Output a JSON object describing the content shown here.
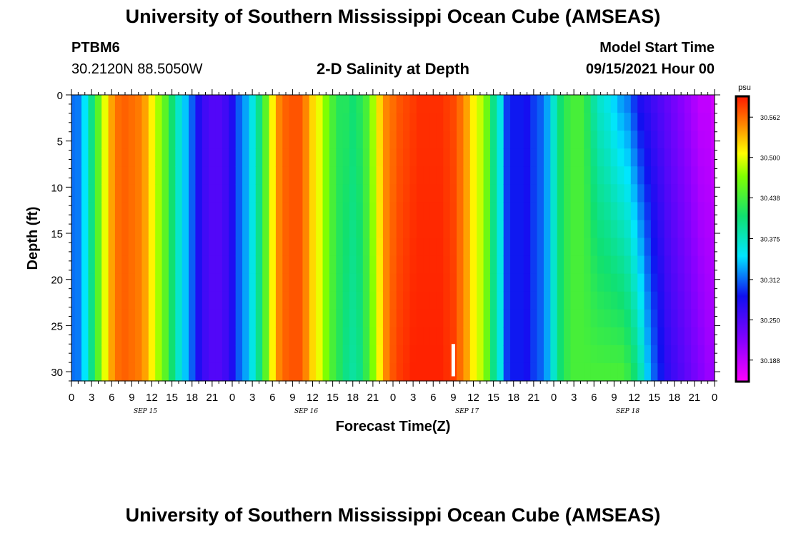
{
  "header": {
    "title": "University of Southern Mississippi Ocean Cube (AMSEAS)",
    "station": "PTBM6",
    "coords": "30.2120N  88.5050W",
    "subtitle": "2-D Salinity at Depth",
    "start_label": "Model Start Time",
    "start_time": "09/15/2021 Hour 00"
  },
  "footer": {
    "title": "University of Southern Mississippi Ocean Cube (AMSEAS)"
  },
  "colors": {
    "marker": "#ffffff",
    "border": "#000000"
  },
  "chart_data": {
    "type": "heatmap",
    "xlabel": "Forecast Time(Z)",
    "ylabel": "Depth (ft)",
    "y_ticks": [
      0,
      5,
      10,
      15,
      20,
      25,
      30
    ],
    "ylim": [
      0,
      31
    ],
    "x_ticks": [
      "0",
      "3",
      "6",
      "9",
      "12",
      "15",
      "18",
      "21",
      "0",
      "3",
      "6",
      "9",
      "12",
      "15",
      "18",
      "21",
      "0",
      "3",
      "6",
      "9",
      "12",
      "15",
      "18",
      "21",
      "0",
      "3",
      "6",
      "9",
      "12",
      "15",
      "18",
      "21",
      "0"
    ],
    "date_labels": [
      "SEP 15",
      "SEP 16",
      "SEP 17",
      "SEP 18"
    ],
    "colorbar": {
      "unit": "psu",
      "tick_labels": [
        "30.562",
        "30.500",
        "30.438",
        "30.375",
        "30.312",
        "30.250",
        "30.188"
      ],
      "min": 30.157,
      "max": 30.593
    },
    "time_hours": [
      0,
      1,
      2,
      3,
      4,
      5,
      6,
      7,
      8,
      9,
      10,
      11,
      12,
      13,
      14,
      15,
      16,
      17,
      18,
      19,
      20,
      21,
      22,
      23,
      24,
      25,
      26,
      27,
      28,
      29,
      30,
      31,
      32,
      33,
      34,
      35,
      36,
      37,
      38,
      39,
      40,
      41,
      42,
      43,
      44,
      45,
      46,
      47,
      48,
      49,
      50,
      51,
      52,
      53,
      54,
      55,
      56,
      57,
      58,
      59,
      60,
      61,
      62,
      63,
      64,
      65,
      66,
      67,
      68,
      69,
      70,
      71,
      72,
      73,
      74,
      75,
      76,
      77,
      78,
      79,
      80,
      81,
      82,
      83,
      84,
      85,
      86,
      87,
      88,
      89,
      90,
      91,
      92,
      93,
      94,
      95,
      96
    ],
    "surface_salinity": [
      30.315,
      30.318,
      30.35,
      30.4,
      30.45,
      30.5,
      30.54,
      30.56,
      30.565,
      30.56,
      30.555,
      30.54,
      30.51,
      30.48,
      30.45,
      30.41,
      30.37,
      30.34,
      30.31,
      30.28,
      30.26,
      30.25,
      30.25,
      30.26,
      30.28,
      30.31,
      30.33,
      30.36,
      30.4,
      30.45,
      30.51,
      30.55,
      30.565,
      30.57,
      30.57,
      30.55,
      30.52,
      30.5,
      30.47,
      30.44,
      30.42,
      30.42,
      30.41,
      30.42,
      30.44,
      30.48,
      30.52,
      30.55,
      30.56,
      30.57,
      30.575,
      30.58,
      30.585,
      30.585,
      30.585,
      30.585,
      30.58,
      30.575,
      30.56,
      30.54,
      30.51,
      30.49,
      30.46,
      30.4,
      30.36,
      30.3,
      30.29,
      30.29,
      30.285,
      30.3,
      30.31,
      30.33,
      30.37,
      30.41,
      30.43,
      30.44,
      30.44,
      30.42,
      30.39,
      30.37,
      30.36,
      30.345,
      30.33,
      30.32,
      30.3,
      30.28,
      30.27,
      30.26,
      30.25,
      30.24,
      30.23,
      30.22,
      30.21,
      30.2,
      30.19,
      30.19,
      30.18
    ],
    "bottom_salinity": [
      30.315,
      30.318,
      30.35,
      30.4,
      30.45,
      30.5,
      30.54,
      30.56,
      30.565,
      30.56,
      30.555,
      30.54,
      30.51,
      30.48,
      30.45,
      30.41,
      30.37,
      30.34,
      30.31,
      30.28,
      30.26,
      30.25,
      30.25,
      30.26,
      30.28,
      30.31,
      30.33,
      30.36,
      30.4,
      30.45,
      30.51,
      30.55,
      30.565,
      30.57,
      30.57,
      30.55,
      30.52,
      30.5,
      30.47,
      30.44,
      30.42,
      30.4,
      30.39,
      30.4,
      30.43,
      30.47,
      30.51,
      30.55,
      30.57,
      30.58,
      30.585,
      30.59,
      30.59,
      30.59,
      30.59,
      30.59,
      30.585,
      30.58,
      30.56,
      30.54,
      30.51,
      30.49,
      30.46,
      30.4,
      30.36,
      30.3,
      30.29,
      30.29,
      30.285,
      30.3,
      30.31,
      30.33,
      30.37,
      30.41,
      30.43,
      30.44,
      30.44,
      30.44,
      30.44,
      30.44,
      30.44,
      30.44,
      30.44,
      30.43,
      30.41,
      30.38,
      30.34,
      30.31,
      30.29,
      30.27,
      30.26,
      30.25,
      30.24,
      30.23,
      30.22,
      30.21,
      30.21
    ],
    "current_time_marker_hour": 57,
    "current_time_marker_depth_range": [
      27,
      30.5
    ]
  }
}
